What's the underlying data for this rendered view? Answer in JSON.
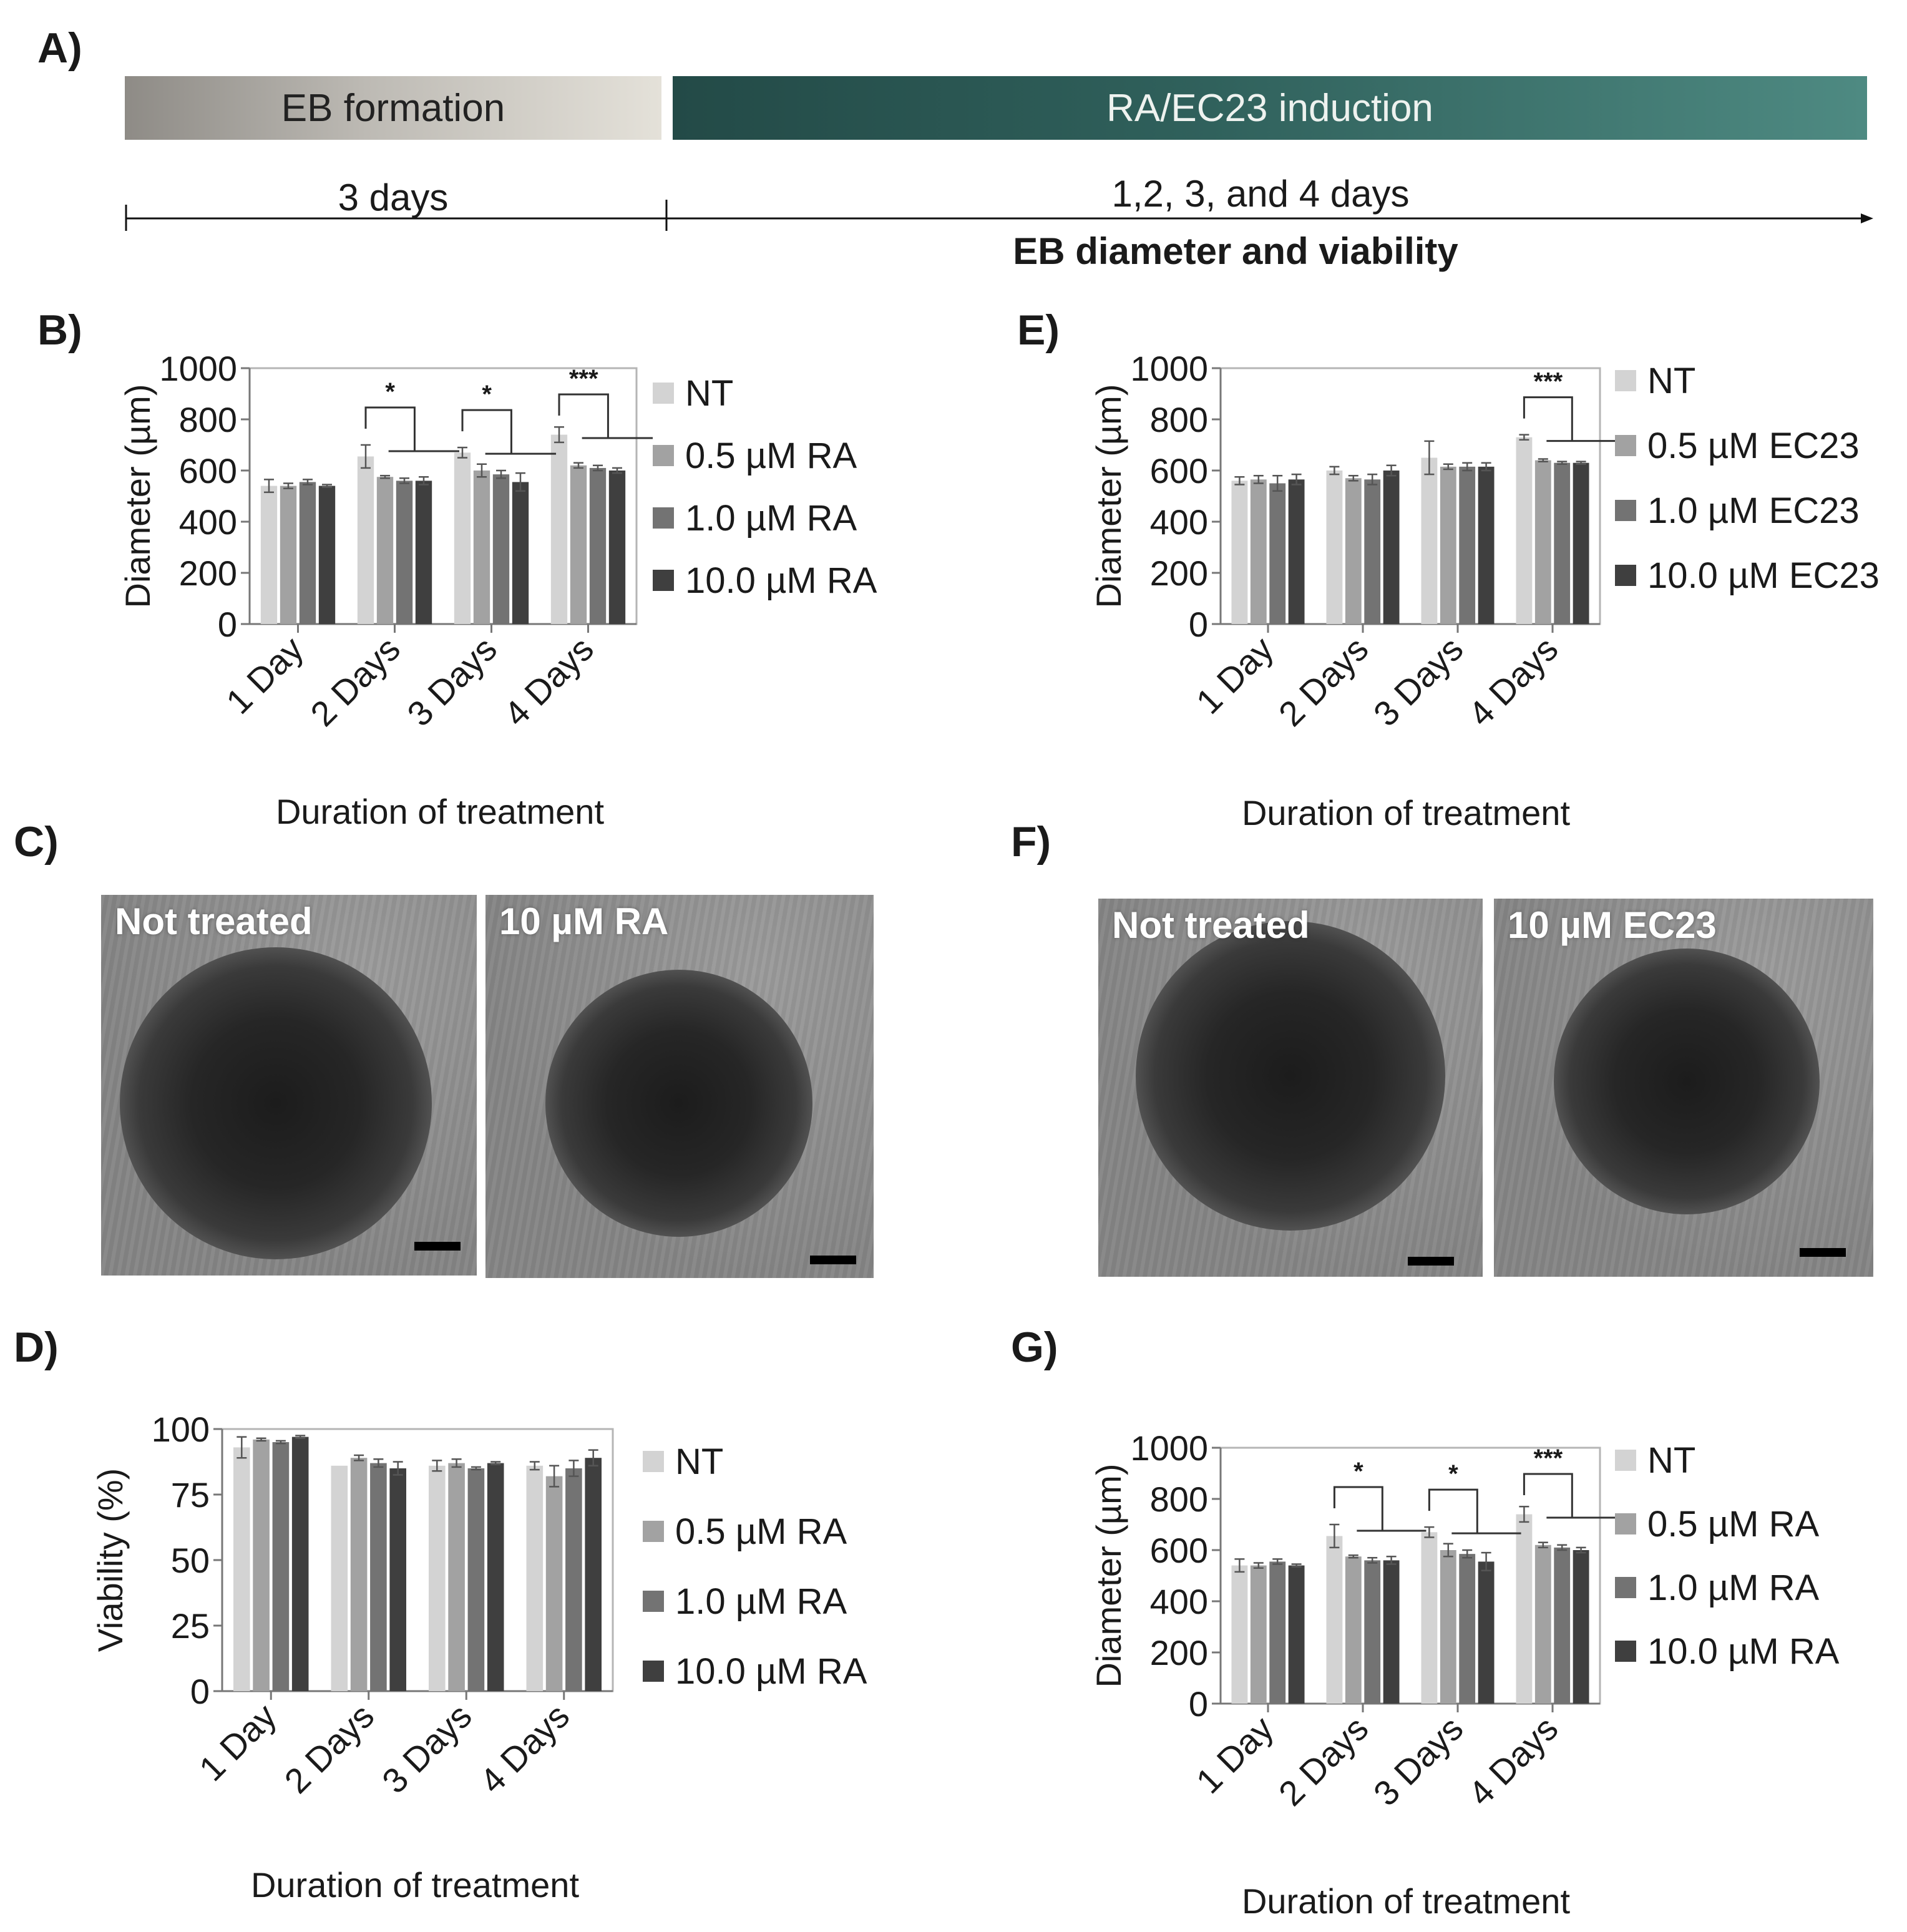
{
  "panels": {
    "A": "A)",
    "B": "B)",
    "C": "C)",
    "D": "D)",
    "E": "E)",
    "F": "F)",
    "G": "G)"
  },
  "timeline": {
    "phase1": "EB formation",
    "phase2": "RA/EC23 induction",
    "duration1": "3 days",
    "duration2": "1,2, 3, and 4 days",
    "measure": "EB diameter and viability"
  },
  "images": {
    "C_left": "Not treated",
    "C_right": "10 µM RA",
    "F_left": "Not treated",
    "F_right": "10 µM EC23"
  },
  "colors": [
    "#d3d3d3",
    "#a2a2a2",
    "#737373",
    "#3f3f3f"
  ],
  "chart_data": [
    {
      "id": "B",
      "type": "bar",
      "title": "",
      "xlabel": "Duration of treatment",
      "ylabel": "Diameter (µm)",
      "ylim": [
        0,
        1000
      ],
      "yticks": [
        "0",
        "200",
        "400",
        "600",
        "800",
        "1000"
      ],
      "categories": [
        "1 Day",
        "2 Days",
        "3 Days",
        "4 Days"
      ],
      "series": [
        {
          "name": "NT",
          "values": [
            540,
            655,
            670,
            740
          ],
          "errors": [
            25,
            45,
            20,
            30
          ]
        },
        {
          "name": "0.5 µM RA",
          "values": [
            540,
            575,
            600,
            620
          ],
          "errors": [
            10,
            5,
            25,
            10
          ]
        },
        {
          "name": "1.0 µM RA",
          "values": [
            555,
            560,
            585,
            610
          ],
          "errors": [
            10,
            10,
            15,
            10
          ]
        },
        {
          "name": "10.0 µM RA",
          "values": [
            540,
            560,
            555,
            600
          ],
          "errors": [
            5,
            15,
            35,
            10
          ]
        }
      ],
      "significance": [
        {
          "category": 1,
          "label": "*"
        },
        {
          "category": 2,
          "label": "*"
        },
        {
          "category": 3,
          "label": "***"
        }
      ]
    },
    {
      "id": "E",
      "type": "bar",
      "title": "",
      "xlabel": "Duration of treatment",
      "ylabel": "Diameter (µm)",
      "ylim": [
        0,
        1000
      ],
      "yticks": [
        "0",
        "200",
        "400",
        "600",
        "800",
        "1000"
      ],
      "categories": [
        "1 Day",
        "2 Days",
        "3 Days",
        "4 Days"
      ],
      "series": [
        {
          "name": "NT",
          "values": [
            560,
            600,
            650,
            730
          ],
          "errors": [
            15,
            15,
            65,
            10
          ]
        },
        {
          "name": "0.5 µM EC23",
          "values": [
            565,
            570,
            615,
            640
          ],
          "errors": [
            15,
            10,
            10,
            5
          ]
        },
        {
          "name": "1.0 µM EC23",
          "values": [
            550,
            565,
            615,
            630
          ],
          "errors": [
            30,
            20,
            15,
            5
          ]
        },
        {
          "name": "10.0 µM EC23",
          "values": [
            565,
            600,
            615,
            630
          ],
          "errors": [
            20,
            20,
            15,
            5
          ]
        }
      ],
      "significance": [
        {
          "category": 3,
          "label": "***"
        }
      ]
    },
    {
      "id": "D",
      "type": "bar",
      "title": "",
      "xlabel": "Duration of treatment",
      "ylabel": "Viability (%)",
      "ylim": [
        0,
        100
      ],
      "yticks": [
        "0",
        "25",
        "50",
        "75",
        "100"
      ],
      "categories": [
        "1 Day",
        "2 Days",
        "3 Days",
        "4 Days"
      ],
      "series": [
        {
          "name": "NT",
          "values": [
            93,
            86,
            86,
            86
          ],
          "errors": [
            4,
            0,
            2,
            1.5
          ]
        },
        {
          "name": "0.5 µM RA",
          "values": [
            96,
            89,
            87,
            82
          ],
          "errors": [
            0.5,
            1,
            1.5,
            4
          ]
        },
        {
          "name": "1.0 µM RA",
          "values": [
            95,
            87,
            85,
            85
          ],
          "errors": [
            0.5,
            1.5,
            0.5,
            3
          ]
        },
        {
          "name": "10.0 µM RA",
          "values": [
            97,
            85,
            87,
            89
          ],
          "errors": [
            0.5,
            2.5,
            0.5,
            3
          ]
        }
      ],
      "significance": []
    },
    {
      "id": "G",
      "type": "bar",
      "title": "",
      "xlabel": "Duration of treatment",
      "ylabel": "Diameter (µm)",
      "ylim": [
        0,
        1000
      ],
      "yticks": [
        "0",
        "200",
        "400",
        "600",
        "800",
        "1000"
      ],
      "categories": [
        "1 Day",
        "2 Days",
        "3 Days",
        "4 Days"
      ],
      "series": [
        {
          "name": "NT",
          "values": [
            540,
            655,
            670,
            740
          ],
          "errors": [
            25,
            45,
            20,
            30
          ]
        },
        {
          "name": "0.5 µM RA",
          "values": [
            540,
            575,
            600,
            620
          ],
          "errors": [
            10,
            5,
            25,
            10
          ]
        },
        {
          "name": "1.0 µM RA",
          "values": [
            555,
            560,
            585,
            610
          ],
          "errors": [
            10,
            10,
            15,
            10
          ]
        },
        {
          "name": "10.0 µM RA",
          "values": [
            540,
            560,
            555,
            600
          ],
          "errors": [
            5,
            15,
            35,
            10
          ]
        }
      ],
      "significance": [
        {
          "category": 1,
          "label": "*"
        },
        {
          "category": 2,
          "label": "*"
        },
        {
          "category": 3,
          "label": "***"
        }
      ]
    }
  ]
}
